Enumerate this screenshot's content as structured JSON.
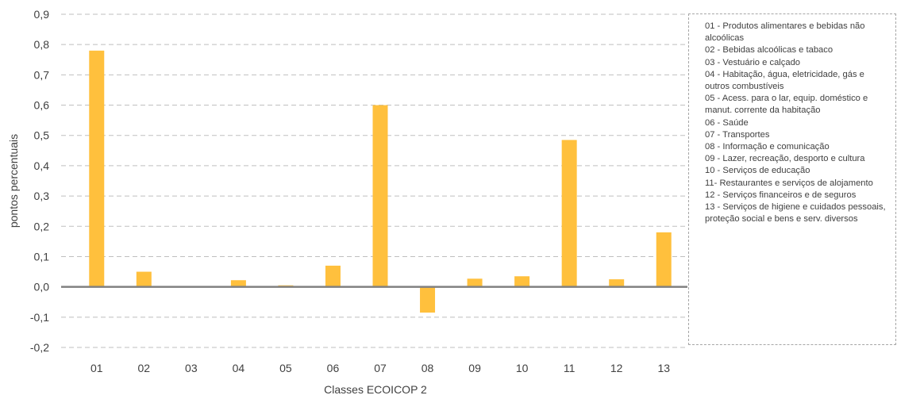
{
  "chart_data": {
    "type": "bar",
    "categories": [
      "01",
      "02",
      "03",
      "04",
      "05",
      "06",
      "07",
      "08",
      "09",
      "10",
      "11",
      "12",
      "13"
    ],
    "values": [
      0.78,
      0.05,
      0.002,
      0.022,
      0.005,
      0.07,
      0.6,
      -0.085,
      0.027,
      0.035,
      0.485,
      0.025,
      0.18
    ],
    "xlabel": "Classes ECOICOP 2",
    "ylabel": "pontos percentuais",
    "ylim": [
      -0.2,
      0.9
    ],
    "yticks": [
      "0,9",
      "0,8",
      "0,7",
      "0,6",
      "0,5",
      "0,4",
      "0,3",
      "0,2",
      "0,1",
      "0,0",
      "-0,1",
      "-0,2"
    ],
    "ytick_values": [
      0.9,
      0.8,
      0.7,
      0.6,
      0.5,
      0.4,
      0.3,
      0.2,
      0.1,
      0.0,
      -0.1,
      -0.2
    ],
    "grid": true,
    "bar_color": "#ffc03d",
    "zero_line_color": "#808080",
    "grid_color": "#bfbfbf"
  },
  "legend": {
    "items": [
      "01 - Produtos alimentares e bebidas não alcoólicas",
      "02 - Bebidas alcoólicas e tabaco",
      "03 - Vestuário e calçado",
      "04 - Habitação, água, eletricidade, gás e outros combustíveis",
      "05 - Acess. para o lar, equip. doméstico e manut. corrente da habitação",
      "06 - Saúde",
      "07 - Transportes",
      "08 - Informação e comunicação",
      "09 - Lazer, recreação, desporto e cultura",
      "10 - Serviços de educação",
      "11- Restaurantes e serviços de alojamento",
      "12 - Serviços financeiros e de seguros",
      "13 - Serviços de higiene e cuidados pessoais, proteção social e bens e serv. diversos"
    ]
  }
}
